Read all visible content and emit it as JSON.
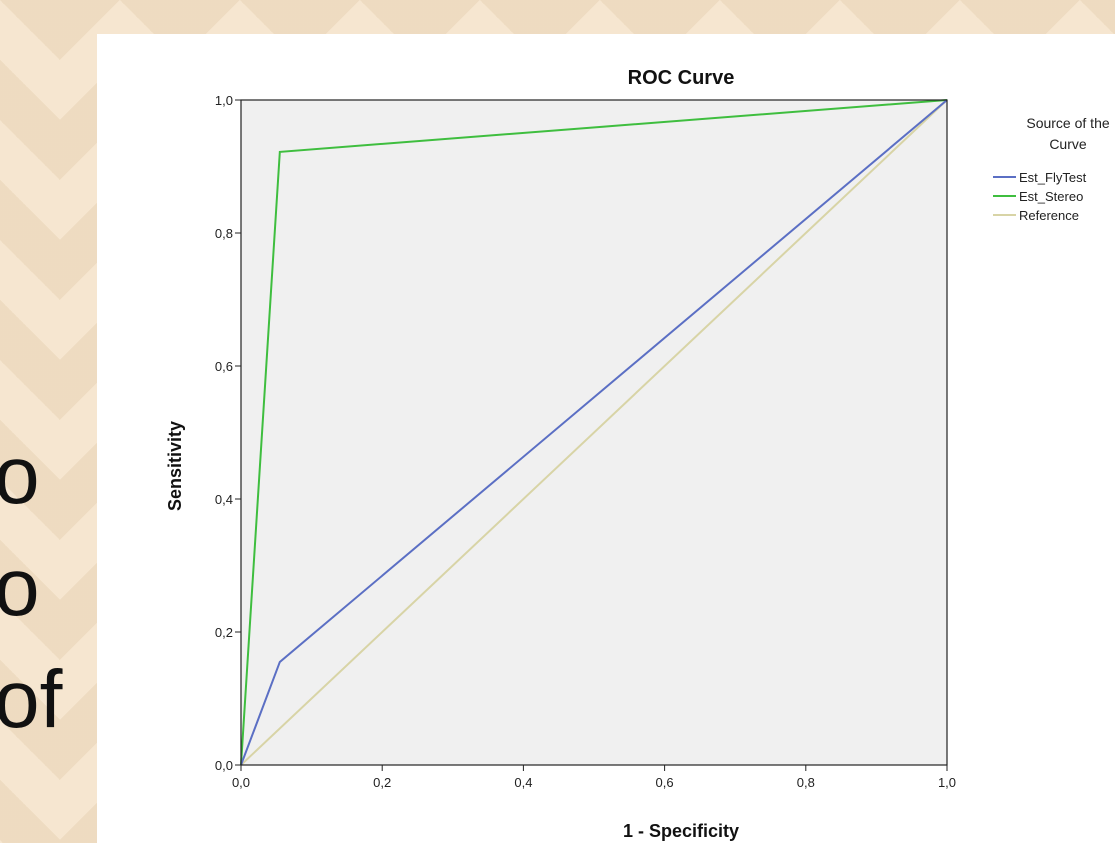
{
  "background": {
    "side_text": [
      "o",
      "o",
      "of"
    ]
  },
  "chart_data": {
    "type": "line",
    "title": "ROC Curve",
    "xlabel": "1 - Specificity",
    "ylabel": "Sensitivity",
    "xlim": [
      0,
      1
    ],
    "ylim": [
      0,
      1
    ],
    "x_ticks": [
      "0,0",
      "0,2",
      "0,4",
      "0,6",
      "0,8",
      "1,0"
    ],
    "y_ticks": [
      "0,0",
      "0,2",
      "0,4",
      "0,6",
      "0,8",
      "1,0"
    ],
    "legend_title": [
      "Source of the",
      "Curve"
    ],
    "legend_position": "right",
    "plot_background": "#f0f0f0",
    "series": [
      {
        "name": "Est_FlyTest",
        "color": "#5b6fc4",
        "x": [
          0,
          0.055,
          1
        ],
        "y": [
          0,
          0.155,
          1
        ]
      },
      {
        "name": "Est_Stereo",
        "color": "#3fbe3f",
        "x": [
          0,
          0.055,
          1
        ],
        "y": [
          0,
          0.922,
          1
        ]
      },
      {
        "name": "Reference",
        "color": "#d8d4a6",
        "x": [
          0,
          1
        ],
        "y": [
          0,
          1
        ]
      }
    ]
  }
}
